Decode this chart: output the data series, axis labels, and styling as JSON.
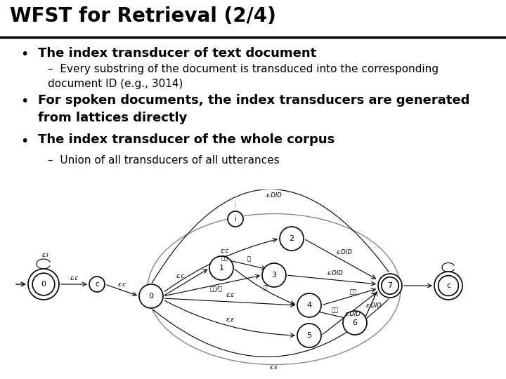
{
  "title": "WFST for Retrieval (2/4)",
  "bg_color": "#ffffff",
  "title_color": "#000000",
  "title_fontsize": 20,
  "bullet1_header": "The index transducer of text document",
  "bullet1_sub": "Every substring of the document is transduced into the corresponding\ndocument ID (e.g., 3014)",
  "bullet2": "For spoken documents, the index transducers are generated\nfrom lattices directly",
  "bullet3_header": "The index transducer of the whole corpus",
  "bullet3_sub": "Union of all transducers of all utterances",
  "font_family": "DejaVu Sans",
  "text_color": "#000000"
}
